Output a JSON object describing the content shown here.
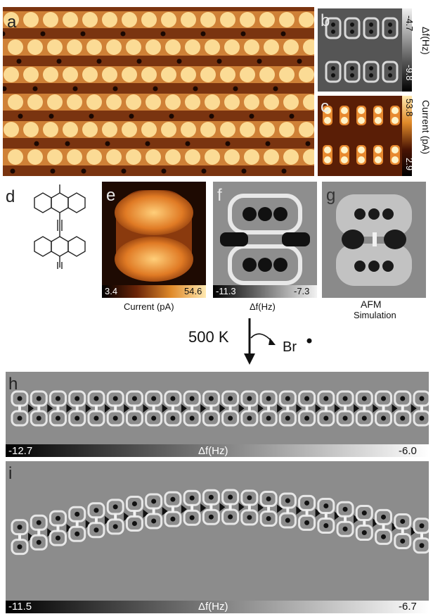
{
  "panels": {
    "a": {
      "label": "a"
    },
    "b": {
      "label": "b",
      "cb_top": "-4.7",
      "cb_bottom": "-9.8",
      "cb_title": "Δf(Hz)"
    },
    "c": {
      "label": "c",
      "cb_top": "53.8",
      "cb_bottom": "2.9",
      "cb_title": "Current (pA)"
    },
    "d": {
      "label": "d"
    },
    "e": {
      "label": "e",
      "cb_min": "3.4",
      "cb_max": "54.6",
      "caption": "Current (pA)"
    },
    "f": {
      "label": "f",
      "cb_min": "-11.3",
      "cb_max": "-7.3",
      "caption": "Δf(Hz)"
    },
    "g": {
      "label": "g",
      "caption_line1": "AFM",
      "caption_line2": "Simulation"
    },
    "h": {
      "label": "h",
      "cb_min": "-12.7",
      "cb_mid": "Δf(Hz)",
      "cb_max": "-6.0"
    },
    "i": {
      "label": "i",
      "cb_min": "-11.5",
      "cb_mid": "Δf(Hz)",
      "cb_max": "-6.7"
    }
  },
  "reaction": {
    "temperature": "500 K",
    "product": "Br"
  },
  "colors": {
    "afmhot_dark": "#2a1004",
    "afmhot_mid": "#c8641e",
    "afmhot_light": "#ffd98a",
    "gray_bg": "#8c8c8c"
  }
}
